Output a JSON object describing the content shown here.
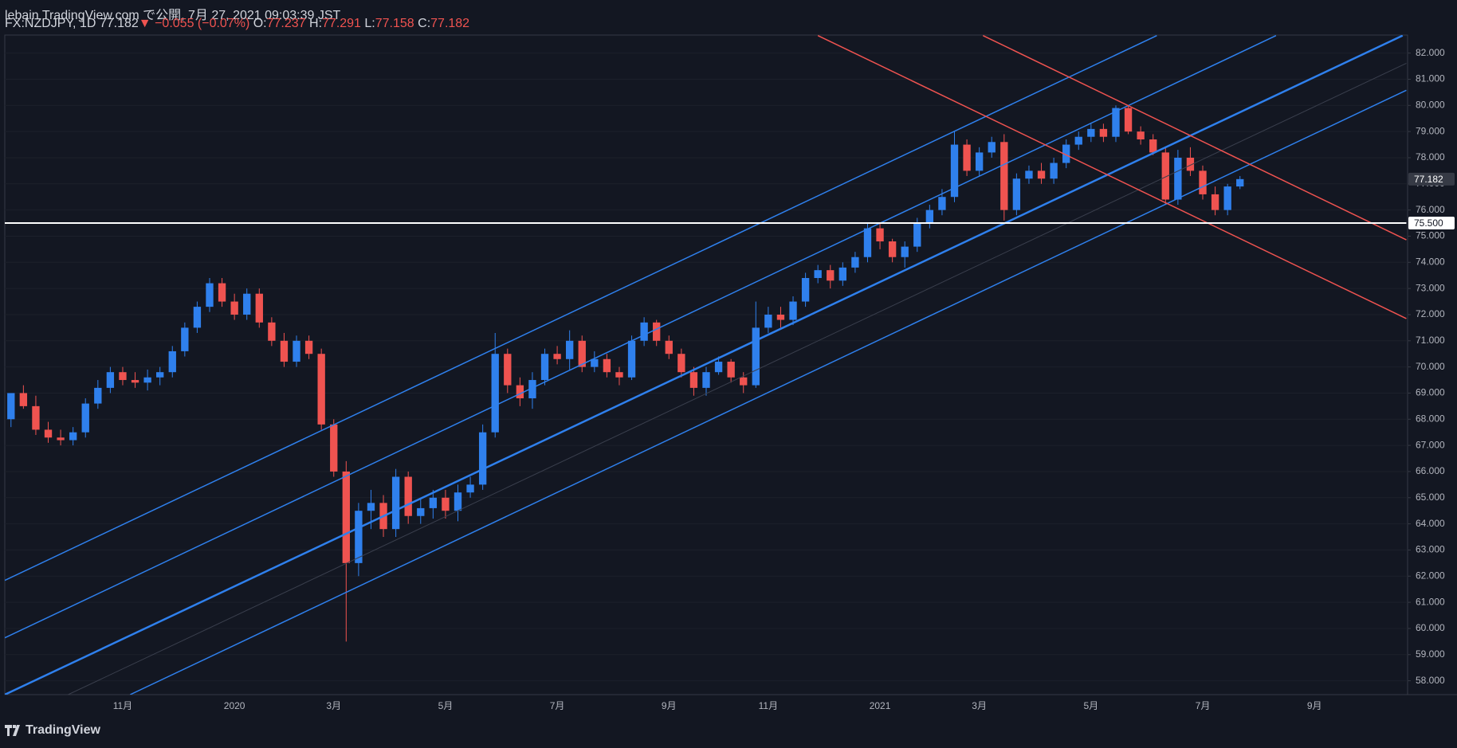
{
  "header": {
    "line1": "lebain TradingView.com で公開, 7月 27, 2021 09:03:39 JST",
    "symbol": "FX:NZDJPY, 1D",
    "price": "77.182",
    "change": "▼ −0.055 (−0.07%)",
    "ohlc": [
      {
        "key": "O:",
        "value": "77.237"
      },
      {
        "key": "H:",
        "value": "77.291"
      },
      {
        "key": "L:",
        "value": "77.158"
      },
      {
        "key": "C:",
        "value": "77.182"
      }
    ]
  },
  "footer": {
    "brand": "TradingView"
  },
  "chart_data": {
    "type": "candlestick",
    "up_color": "#2f80ed",
    "down_color": "#ef5350",
    "grid": true,
    "categories": [
      null,
      null,
      null,
      null,
      null,
      null,
      null,
      null,
      null,
      "11月",
      null,
      null,
      null,
      null,
      null,
      null,
      null,
      null,
      "2020",
      null,
      null,
      null,
      null,
      null,
      null,
      null,
      "3月",
      null,
      null,
      null,
      null,
      null,
      null,
      null,
      null,
      "5月",
      null,
      null,
      null,
      null,
      null,
      null,
      null,
      null,
      "7月",
      null,
      null,
      null,
      null,
      null,
      null,
      null,
      null,
      "9月",
      null,
      null,
      null,
      null,
      null,
      null,
      null,
      "11月",
      null,
      null,
      null,
      null,
      null,
      null,
      null,
      null,
      "2021",
      null,
      null,
      null,
      null,
      null,
      null,
      null,
      "3月",
      null,
      null,
      null,
      null,
      null,
      null,
      null,
      null,
      "5月",
      null,
      null,
      null,
      null,
      null,
      null,
      null,
      null,
      "7月",
      null,
      null,
      null,
      null,
      null,
      null,
      null,
      null,
      "9月",
      null,
      null,
      null,
      null,
      null,
      null,
      null
    ],
    "open": [
      68.0,
      69.0,
      68.5,
      67.6,
      67.3,
      67.2,
      67.5,
      68.6,
      69.2,
      69.8,
      69.5,
      69.4,
      69.6,
      69.8,
      70.6,
      71.5,
      72.3,
      73.2,
      72.5,
      72.0,
      72.8,
      71.7,
      71.0,
      70.2,
      71.0,
      70.5,
      67.8,
      66.0,
      62.5,
      64.5,
      64.8,
      63.8,
      65.8,
      64.3,
      64.6,
      65.0,
      64.5,
      65.2,
      65.5,
      67.5,
      70.5,
      69.3,
      68.8,
      69.5,
      70.5,
      70.3,
      71.0,
      70.0,
      70.3,
      69.8,
      69.6,
      71.0,
      71.7,
      71.0,
      70.5,
      69.8,
      69.2,
      69.8,
      70.2,
      69.6,
      69.3,
      71.5,
      72.0,
      71.8,
      72.5,
      73.4,
      73.7,
      73.3,
      73.8,
      74.2,
      75.3,
      74.8,
      74.2,
      74.6,
      75.5,
      76.0,
      76.5,
      78.5,
      77.5,
      78.2,
      78.6,
      76.0,
      77.2,
      77.5,
      77.2,
      77.8,
      78.5,
      78.8,
      79.1,
      78.8,
      79.9,
      79.0,
      78.7,
      78.2,
      76.4,
      78.0,
      77.5,
      76.6,
      76.0,
      76.9,
      null,
      null,
      null,
      null,
      null,
      null,
      null,
      null,
      null,
      null,
      null,
      null,
      null
    ],
    "high": [
      68.8,
      69.3,
      68.9,
      67.9,
      67.6,
      67.7,
      68.8,
      69.5,
      70.0,
      70.0,
      69.8,
      69.9,
      70.0,
      70.8,
      71.7,
      72.5,
      73.4,
      73.4,
      72.8,
      73.0,
      73.0,
      71.9,
      71.3,
      71.2,
      71.2,
      70.7,
      68.0,
      66.4,
      64.8,
      65.3,
      65.1,
      66.1,
      66.0,
      65.0,
      65.3,
      65.3,
      65.5,
      65.8,
      67.8,
      71.3,
      70.7,
      69.6,
      69.8,
      70.7,
      70.8,
      71.4,
      71.2,
      70.6,
      70.5,
      70.0,
      71.2,
      71.9,
      71.8,
      71.2,
      70.7,
      70.0,
      70.0,
      70.4,
      70.3,
      69.8,
      72.5,
      72.3,
      72.3,
      72.7,
      73.6,
      73.9,
      73.9,
      74.0,
      74.4,
      75.5,
      75.5,
      74.9,
      74.8,
      75.7,
      76.2,
      76.8,
      79.0,
      78.7,
      78.4,
      78.8,
      78.9,
      77.4,
      77.7,
      77.8,
      78.0,
      78.7,
      79.0,
      79.3,
      79.3,
      80.0,
      80.0,
      79.2,
      78.9,
      78.4,
      78.3,
      78.4,
      77.7,
      76.9,
      77.0,
      77.3,
      null,
      null,
      null,
      null,
      null,
      null,
      null,
      null,
      null,
      null,
      null,
      null,
      null
    ],
    "low": [
      67.7,
      68.4,
      67.4,
      67.1,
      67.0,
      67.0,
      67.3,
      68.4,
      69.0,
      69.3,
      69.2,
      69.1,
      69.3,
      69.6,
      70.4,
      71.3,
      72.1,
      72.3,
      71.8,
      71.8,
      71.5,
      70.8,
      70.0,
      70.0,
      70.3,
      67.6,
      65.8,
      59.5,
      62.0,
      63.8,
      63.5,
      63.5,
      64.0,
      64.0,
      64.2,
      64.2,
      64.1,
      65.0,
      65.3,
      67.3,
      69.0,
      68.5,
      68.4,
      69.3,
      70.1,
      69.9,
      69.8,
      69.8,
      69.6,
      69.3,
      69.5,
      70.8,
      70.8,
      70.3,
      69.6,
      68.9,
      68.9,
      69.7,
      69.4,
      69.0,
      69.2,
      71.3,
      71.5,
      71.6,
      72.3,
      73.2,
      73.0,
      73.1,
      73.6,
      74.0,
      74.5,
      74.0,
      73.8,
      74.4,
      75.3,
      75.8,
      76.3,
      77.3,
      77.3,
      78.0,
      75.6,
      75.8,
      77.0,
      77.0,
      77.0,
      77.6,
      78.3,
      78.6,
      78.6,
      78.6,
      78.9,
      78.5,
      78.1,
      76.2,
      76.2,
      77.3,
      76.4,
      75.8,
      75.8,
      76.8,
      null,
      null,
      null,
      null,
      null,
      null,
      null,
      null,
      null,
      null,
      null,
      null,
      null
    ],
    "close": [
      69.0,
      68.5,
      67.6,
      67.3,
      67.2,
      67.5,
      68.6,
      69.2,
      69.8,
      69.5,
      69.4,
      69.6,
      69.8,
      70.6,
      71.5,
      72.3,
      73.2,
      72.5,
      72.0,
      72.8,
      71.7,
      71.0,
      70.2,
      71.0,
      70.5,
      67.8,
      66.0,
      62.5,
      64.5,
      64.8,
      63.8,
      65.8,
      64.3,
      64.6,
      65.0,
      64.5,
      65.2,
      65.5,
      67.5,
      70.5,
      69.3,
      68.8,
      69.5,
      70.5,
      70.3,
      71.0,
      70.0,
      70.3,
      69.8,
      69.6,
      71.0,
      71.7,
      71.0,
      70.5,
      69.8,
      69.2,
      69.8,
      70.2,
      69.6,
      69.3,
      71.5,
      72.0,
      71.8,
      72.5,
      73.4,
      73.7,
      73.3,
      73.8,
      74.2,
      75.3,
      74.8,
      74.2,
      74.6,
      75.5,
      76.0,
      76.5,
      78.5,
      77.5,
      78.2,
      78.6,
      76.0,
      77.2,
      77.5,
      77.2,
      77.8,
      78.5,
      78.8,
      79.1,
      78.8,
      79.9,
      79.0,
      78.7,
      78.2,
      76.4,
      78.0,
      77.5,
      76.6,
      76.0,
      76.9,
      77.182,
      null,
      null,
      null,
      null,
      null,
      null,
      null,
      null,
      null,
      null,
      null,
      null,
      null
    ],
    "ylim": [
      57.47,
      82.69
    ],
    "yticks": [
      {
        "value": 58,
        "label": "58.000"
      },
      {
        "value": 59,
        "label": "59.000"
      },
      {
        "value": 60,
        "label": "60.000"
      },
      {
        "value": 61,
        "label": "61.000"
      },
      {
        "value": 62,
        "label": "62.000"
      },
      {
        "value": 63,
        "label": "63.000"
      },
      {
        "value": 64,
        "label": "64.000"
      },
      {
        "value": 65,
        "label": "65.000"
      },
      {
        "value": 66,
        "label": "66.000"
      },
      {
        "value": 67,
        "label": "67.000"
      },
      {
        "value": 68,
        "label": "68.000"
      },
      {
        "value": 69,
        "label": "69.000"
      },
      {
        "value": 70,
        "label": "70.000"
      },
      {
        "value": 71,
        "label": "71.000"
      },
      {
        "value": 72,
        "label": "72.000"
      },
      {
        "value": 73,
        "label": "73.000"
      },
      {
        "value": 74,
        "label": "74.000"
      },
      {
        "value": 75,
        "label": "75.000"
      },
      {
        "value": 76,
        "label": "76.000"
      },
      {
        "value": 77,
        "label": "77.000"
      },
      {
        "value": 78,
        "label": "78.000"
      },
      {
        "value": 79,
        "label": "79.000"
      },
      {
        "value": 80,
        "label": "80.000"
      },
      {
        "value": 81,
        "label": "81.000"
      },
      {
        "value": 82,
        "label": "82.000"
      }
    ],
    "lines": [
      {
        "color": "#2f80ed",
        "width": 1.5,
        "points": [
          [
            -0.5,
            61.84
          ],
          [
            92.3,
            82.67
          ]
        ]
      },
      {
        "color": "#2f80ed",
        "width": 1.5,
        "points": [
          [
            -0.5,
            59.64
          ],
          [
            101.9,
            82.67
          ]
        ]
      },
      {
        "color": "#2f80ed",
        "width": 2.5,
        "points": [
          [
            -0.5,
            57.47
          ],
          [
            112.1,
            82.67
          ]
        ]
      },
      {
        "color": "#2f80ed",
        "width": 1.5,
        "points": [
          [
            9.6,
            57.47
          ],
          [
            112.4,
            80.58
          ]
        ]
      },
      {
        "color": "#3a3f4d",
        "width": 1,
        "points": [
          [
            4.6,
            57.47
          ],
          [
            112.4,
            81.61
          ]
        ]
      },
      {
        "color": "#ef5350",
        "width": 1.5,
        "points": [
          [
            78.3,
            82.67
          ],
          [
            112.4,
            74.86
          ]
        ]
      },
      {
        "color": "#ef5350",
        "width": 1.5,
        "points": [
          [
            65.0,
            82.67
          ],
          [
            112.4,
            71.85
          ]
        ]
      },
      {
        "color": "#ffffff",
        "width": 2,
        "points": [
          [
            -0.5,
            75.5
          ],
          [
            112.4,
            75.5
          ]
        ]
      }
    ],
    "price_labels": [
      {
        "value": 77.182,
        "label": "77.182",
        "color": "#363a45",
        "text_color": "#ffffff"
      },
      {
        "value": 75.5,
        "label": "75.500",
        "color": "#ffffff",
        "text_color": "#131722"
      }
    ]
  }
}
